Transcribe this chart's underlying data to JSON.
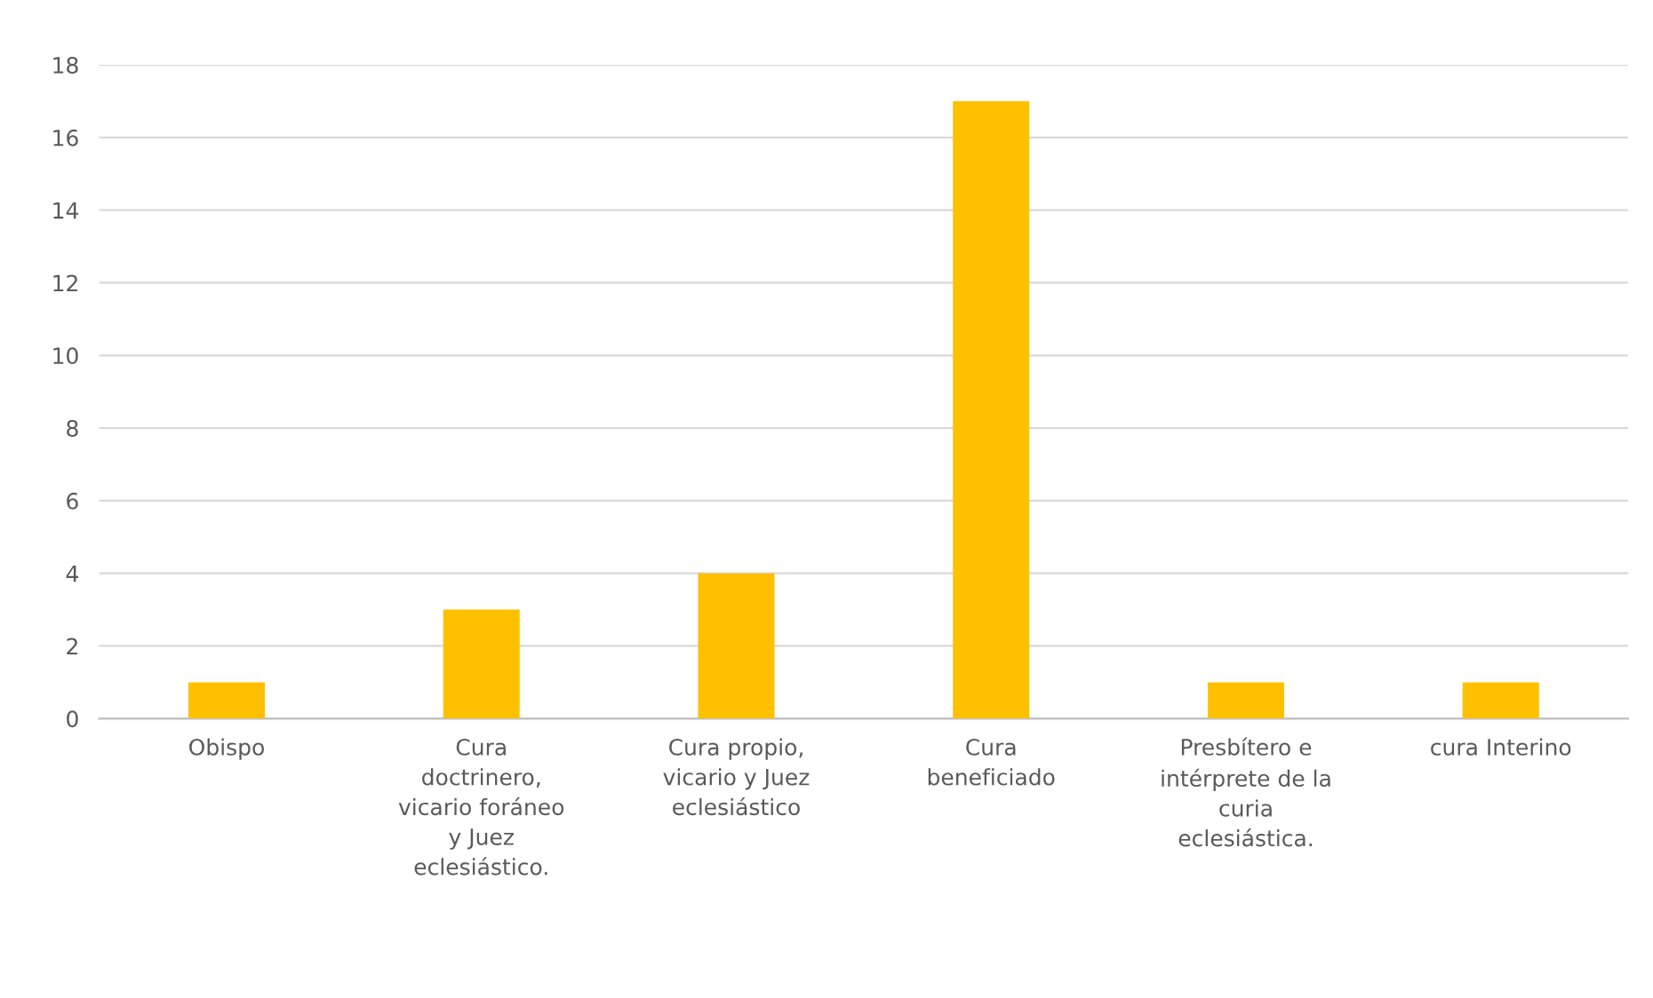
{
  "chart_data": {
    "type": "bar",
    "categories": [
      "Obispo",
      "Cura\ndoctrinero,\nvicario foráneo\ny Juez\neclesiástico.",
      "Cura propio,\nvicario y Juez\neclesiástico",
      "Cura\nbeneficiado",
      "Presbítero e\nintérprete de la\ncuria\neclesiástica.",
      "cura Interino"
    ],
    "values": [
      1,
      3,
      4,
      17,
      1,
      1
    ],
    "color": "#ffc000",
    "ylim": [
      0,
      18
    ],
    "yticks": [
      0,
      2,
      4,
      6,
      8,
      10,
      12,
      14,
      16,
      18
    ],
    "grid": "y"
  }
}
